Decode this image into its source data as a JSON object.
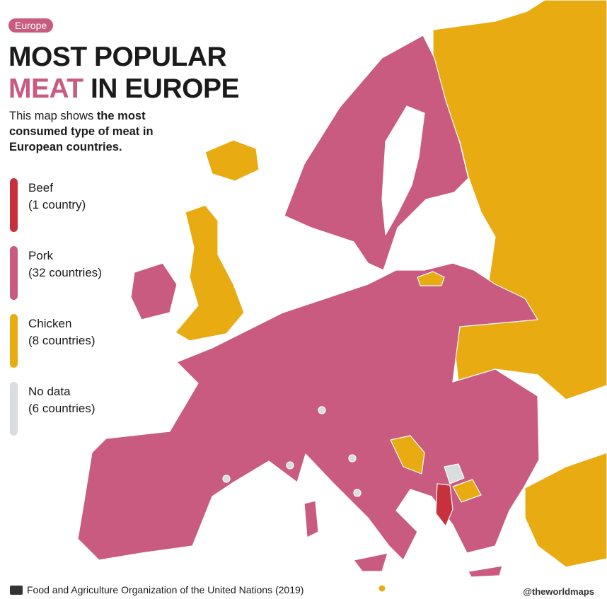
{
  "badge": "Europe",
  "title": {
    "line1": "MOST POPULAR",
    "highlight": "MEAT",
    "rest": "IN EUROPE"
  },
  "description": {
    "intro": "This map shows",
    "emphasis": "the most consumed type of meat in European countries."
  },
  "legend": [
    {
      "label": "Beef",
      "count": "(1 country)",
      "color": "#c7313b"
    },
    {
      "label": "Pork",
      "count": "(32 countries)",
      "color": "#c95a80"
    },
    {
      "label": "Chicken",
      "count": "(8 countries)",
      "color": "#e8ab12"
    },
    {
      "label": "No data",
      "count": "(6 countries)",
      "color": "#d9dddd"
    }
  ],
  "source": "Food and Agriculture Organization of the United Nations (2019)",
  "credit": "@theworldmaps"
}
